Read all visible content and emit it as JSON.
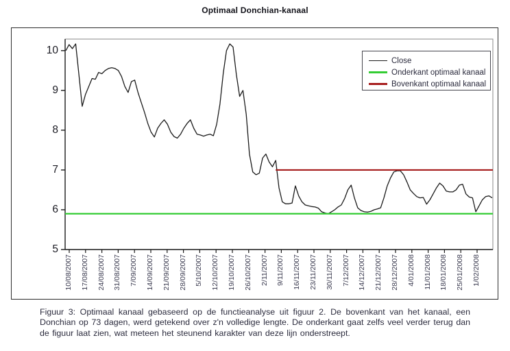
{
  "title": "Optimaal Donchian-kanaal",
  "legend": {
    "items": [
      {
        "label": "Close",
        "color": "#1a1a1a",
        "thickness": 1.6
      },
      {
        "label": "Onderkant optimaal kanaal",
        "color": "#33cc33",
        "thickness": 2.6
      },
      {
        "label": "Bovenkant optimaal kanaal",
        "color": "#a61c1c",
        "thickness": 2.6
      }
    ]
  },
  "caption": "Figuur 3: Optimaal kanaal gebaseerd op de functieanalyse uit figuur 2. De bovenkant van het kanaal, een Donchian op 73 dagen, werd getekend over z'n volledige lengte. De onderkant gaat zelfs veel verder terug dan de figuur laat zien, wat meteen het steunend karakter van deze lijn onderstreept.",
  "chart_data": {
    "type": "line",
    "title": "Optimaal Donchian-kanaal",
    "xlabel": "",
    "ylabel": "",
    "ylim": [
      5,
      10.29
    ],
    "yticks": [
      5,
      6,
      7,
      8,
      9,
      10
    ],
    "grid": false,
    "legend_position": "top-right",
    "x_tick_labels": [
      "10/08/2007",
      "17/08/2007",
      "24/08/2007",
      "31/08/2007",
      "7/09/2007",
      "14/09/2007",
      "21/09/2007",
      "28/09/2007",
      "5/10/2007",
      "12/10/2007",
      "19/10/2007",
      "26/10/2007",
      "2/11/2007",
      "9/11/2007",
      "16/11/2007",
      "23/11/2007",
      "30/11/2007",
      "7/12/2007",
      "14/12/2007",
      "21/12/2007",
      "28/12/2007",
      "4/01/2008",
      "11/01/2008",
      "18/01/2008",
      "25/01/2008",
      "1/02/2008"
    ],
    "points_per_tick": 5,
    "series": [
      {
        "name": "Close",
        "kind": "line",
        "color": "#1a1a1a",
        "width": 1.3,
        "values": [
          10.0,
          10.15,
          10.05,
          10.17,
          9.4,
          8.6,
          8.9,
          9.1,
          9.3,
          9.28,
          9.45,
          9.42,
          9.5,
          9.55,
          9.57,
          9.55,
          9.5,
          9.35,
          9.1,
          8.95,
          9.22,
          9.26,
          8.95,
          8.7,
          8.45,
          8.17,
          7.95,
          7.83,
          8.05,
          8.17,
          8.26,
          8.15,
          7.95,
          7.84,
          7.8,
          7.9,
          8.05,
          8.17,
          8.26,
          8.05,
          7.9,
          7.88,
          7.85,
          7.88,
          7.9,
          7.86,
          8.15,
          8.66,
          9.43,
          10.0,
          10.17,
          10.09,
          9.4,
          8.85,
          9.0,
          8.4,
          7.4,
          6.95,
          6.88,
          6.92,
          7.3,
          7.4,
          7.2,
          7.08,
          7.24,
          6.55,
          6.2,
          6.15,
          6.15,
          6.17,
          6.6,
          6.35,
          6.2,
          6.12,
          6.1,
          6.08,
          6.07,
          6.04,
          5.95,
          5.92,
          5.9,
          5.95,
          6.0,
          6.07,
          6.12,
          6.28,
          6.5,
          6.62,
          6.3,
          6.05,
          5.98,
          5.95,
          5.94,
          5.96,
          6.0,
          6.02,
          6.05,
          6.3,
          6.6,
          6.8,
          6.95,
          6.98,
          6.98,
          6.88,
          6.7,
          6.5,
          6.41,
          6.33,
          6.3,
          6.31,
          6.14,
          6.25,
          6.4,
          6.55,
          6.67,
          6.6,
          6.47,
          6.45,
          6.45,
          6.5,
          6.62,
          6.64,
          6.4,
          6.32,
          6.3,
          5.95,
          6.1,
          6.25,
          6.33,
          6.35,
          6.3
        ]
      },
      {
        "name": "Onderkant optimaal kanaal",
        "kind": "hline",
        "color": "#33cc33",
        "width": 2.2,
        "value": 5.9
      },
      {
        "name": "Bovenkant optimaal kanaal",
        "kind": "hline",
        "color": "#a61c1c",
        "width": 2.2,
        "value": 7.0,
        "start_index": 64
      }
    ]
  }
}
